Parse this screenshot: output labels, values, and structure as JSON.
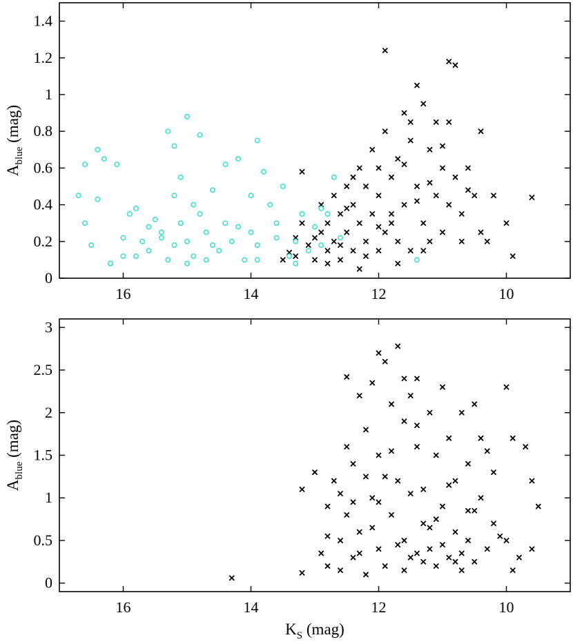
{
  "chart_data": [
    {
      "type": "scatter",
      "title": "",
      "xlabel": {
        "main": "K",
        "sub": "S",
        "unit": " (mag)",
        "shown": false
      },
      "ylabel": {
        "main": "A",
        "sub": "blue",
        "unit": " (mag)"
      },
      "xlim": [
        17.0,
        9.0
      ],
      "ylim": [
        0.0,
        1.5
      ],
      "x_reversed": true,
      "xticks": [
        16,
        14,
        12,
        10
      ],
      "yticks": [
        0,
        0.2,
        0.4,
        0.6,
        0.8,
        1,
        1.2,
        1.4
      ],
      "xtick_labels": [
        "16",
        "14",
        "12",
        "10"
      ],
      "ytick_labels": [
        "0",
        "0.2",
        "0.4",
        "0.6",
        "0.8",
        "1",
        "1.2",
        "1.4"
      ],
      "grid": false,
      "legend": null,
      "series": [
        {
          "marker": "x",
          "color": "#000000",
          "points": [
            [
              13.5,
              0.1
            ],
            [
              13.4,
              0.14
            ],
            [
              13.3,
              0.12
            ],
            [
              13.2,
              0.3
            ],
            [
              13.1,
              0.18
            ],
            [
              13.0,
              0.22
            ],
            [
              13.0,
              0.1
            ],
            [
              12.9,
              0.25
            ],
            [
              12.8,
              0.15
            ],
            [
              12.8,
              0.3
            ],
            [
              12.7,
              0.2
            ],
            [
              12.7,
              0.45
            ],
            [
              12.6,
              0.1
            ],
            [
              12.6,
              0.35
            ],
            [
              12.5,
              0.25
            ],
            [
              12.5,
              0.5
            ],
            [
              12.4,
              0.15
            ],
            [
              12.4,
              0.4
            ],
            [
              12.3,
              0.3
            ],
            [
              12.3,
              0.6
            ],
            [
              12.2,
              0.2
            ],
            [
              12.2,
              0.5
            ],
            [
              12.1,
              0.35
            ],
            [
              12.1,
              0.7
            ],
            [
              12.0,
              0.15
            ],
            [
              12.0,
              0.45
            ],
            [
              11.9,
              0.25
            ],
            [
              11.9,
              0.8
            ],
            [
              11.8,
              0.55
            ],
            [
              11.8,
              0.3
            ],
            [
              11.7,
              0.65
            ],
            [
              11.7,
              0.2
            ],
            [
              11.6,
              0.9
            ],
            [
              11.6,
              0.4
            ],
            [
              11.5,
              0.75
            ],
            [
              11.5,
              0.15
            ],
            [
              11.4,
              1.05
            ],
            [
              11.4,
              0.5
            ],
            [
              11.3,
              0.95
            ],
            [
              11.3,
              0.3
            ],
            [
              11.2,
              0.7
            ],
            [
              11.2,
              0.2
            ],
            [
              11.1,
              0.85
            ],
            [
              11.1,
              0.45
            ],
            [
              11.0,
              0.6
            ],
            [
              11.0,
              0.25
            ],
            [
              10.9,
              1.18
            ],
            [
              10.9,
              0.4
            ],
            [
              10.8,
              1.16
            ],
            [
              10.8,
              0.55
            ],
            [
              10.7,
              0.35
            ],
            [
              10.6,
              0.6
            ],
            [
              10.5,
              0.45
            ],
            [
              10.4,
              0.8
            ],
            [
              10.4,
              0.25
            ],
            [
              10.3,
              0.2
            ],
            [
              10.2,
              0.45
            ],
            [
              10.0,
              0.3
            ],
            [
              9.9,
              0.12
            ],
            [
              9.6,
              0.44
            ],
            [
              11.9,
              1.24
            ],
            [
              11.5,
              0.85
            ],
            [
              12.0,
              0.6
            ],
            [
              12.5,
              0.38
            ],
            [
              12.9,
              0.4
            ],
            [
              13.2,
              0.58
            ],
            [
              13.3,
              0.22
            ],
            [
              12.2,
              0.12
            ],
            [
              11.6,
              0.62
            ],
            [
              10.9,
              0.85
            ],
            [
              12.4,
              0.55
            ],
            [
              11.8,
              0.35
            ],
            [
              11.3,
              0.15
            ],
            [
              10.7,
              0.2
            ],
            [
              12.6,
              0.18
            ],
            [
              12.0,
              0.28
            ],
            [
              11.4,
              0.42
            ],
            [
              11.0,
              0.72
            ],
            [
              10.6,
              0.48
            ],
            [
              12.3,
              0.05
            ],
            [
              11.7,
              0.08
            ],
            [
              11.2,
              0.52
            ],
            [
              12.8,
              0.08
            ]
          ]
        },
        {
          "marker": "o",
          "color": "#40e0d0",
          "points": [
            [
              16.7,
              0.45
            ],
            [
              16.6,
              0.62
            ],
            [
              16.6,
              0.3
            ],
            [
              16.5,
              0.18
            ],
            [
              16.4,
              0.7
            ],
            [
              16.4,
              0.43
            ],
            [
              16.3,
              0.65
            ],
            [
              16.2,
              0.08
            ],
            [
              16.1,
              0.62
            ],
            [
              16.0,
              0.12
            ],
            [
              15.9,
              0.35
            ],
            [
              15.8,
              0.38
            ],
            [
              15.7,
              0.2
            ],
            [
              15.6,
              0.15
            ],
            [
              15.5,
              0.32
            ],
            [
              15.4,
              0.25
            ],
            [
              15.3,
              0.1
            ],
            [
              15.3,
              0.8
            ],
            [
              15.2,
              0.45
            ],
            [
              15.2,
              0.72
            ],
            [
              15.1,
              0.55
            ],
            [
              15.1,
              0.3
            ],
            [
              15.0,
              0.88
            ],
            [
              15.0,
              0.2
            ],
            [
              14.9,
              0.4
            ],
            [
              14.9,
              0.12
            ],
            [
              14.8,
              0.78
            ],
            [
              14.8,
              0.35
            ],
            [
              14.7,
              0.25
            ],
            [
              14.6,
              0.48
            ],
            [
              14.5,
              0.15
            ],
            [
              14.4,
              0.62
            ],
            [
              14.4,
              0.3
            ],
            [
              14.3,
              0.2
            ],
            [
              14.2,
              0.65
            ],
            [
              14.1,
              0.1
            ],
            [
              14.0,
              0.45
            ],
            [
              14.0,
              0.25
            ],
            [
              13.9,
              0.75
            ],
            [
              13.9,
              0.18
            ],
            [
              13.8,
              0.58
            ],
            [
              13.7,
              0.4
            ],
            [
              13.6,
              0.3
            ],
            [
              13.5,
              0.5
            ],
            [
              13.4,
              0.12
            ],
            [
              13.3,
              0.2
            ],
            [
              13.2,
              0.35
            ],
            [
              13.1,
              0.15
            ],
            [
              13.0,
              0.28
            ],
            [
              12.9,
              0.18
            ],
            [
              12.8,
              0.35
            ],
            [
              12.7,
              0.55
            ],
            [
              12.6,
              0.22
            ],
            [
              16.2,
              0.08
            ],
            [
              15.8,
              0.12
            ],
            [
              15.4,
              0.22
            ],
            [
              15.6,
              0.28
            ],
            [
              14.6,
              0.18
            ],
            [
              14.2,
              0.28
            ],
            [
              13.9,
              0.1
            ],
            [
              13.6,
              0.22
            ],
            [
              12.9,
              0.38
            ],
            [
              11.4,
              0.1
            ],
            [
              15.0,
              0.08
            ],
            [
              14.7,
              0.1
            ],
            [
              13.3,
              0.08
            ],
            [
              16.0,
              0.22
            ],
            [
              15.2,
              0.18
            ]
          ]
        }
      ]
    },
    {
      "type": "scatter",
      "title": "",
      "xlabel": {
        "main": "K",
        "sub": "S",
        "unit": " (mag)",
        "shown": true
      },
      "ylabel": {
        "main": "A",
        "sub": "blue",
        "unit": " (mag)"
      },
      "xlim": [
        17.0,
        9.0
      ],
      "ylim": [
        -0.1,
        3.1
      ],
      "x_reversed": true,
      "xticks": [
        16,
        14,
        12,
        10
      ],
      "yticks": [
        0,
        0.5,
        1,
        1.5,
        2,
        2.5,
        3
      ],
      "xtick_labels": [
        "16",
        "14",
        "12",
        "10"
      ],
      "ytick_labels": [
        "0",
        "0.5",
        "1",
        "1.5",
        "2",
        "2.5",
        "3"
      ],
      "grid": false,
      "legend": null,
      "series": [
        {
          "marker": "x",
          "color": "#000000",
          "points": [
            [
              14.3,
              0.06
            ],
            [
              13.2,
              1.1
            ],
            [
              13.2,
              0.12
            ],
            [
              13.0,
              1.3
            ],
            [
              12.9,
              0.35
            ],
            [
              12.8,
              0.9
            ],
            [
              12.8,
              0.2
            ],
            [
              12.7,
              1.2
            ],
            [
              12.6,
              0.5
            ],
            [
              12.6,
              0.15
            ],
            [
              12.5,
              1.6
            ],
            [
              12.5,
              2.42
            ],
            [
              12.5,
              0.8
            ],
            [
              12.4,
              0.3
            ],
            [
              12.4,
              1.4
            ],
            [
              12.3,
              2.2
            ],
            [
              12.3,
              0.6
            ],
            [
              12.2,
              1.8
            ],
            [
              12.2,
              0.1
            ],
            [
              12.1,
              2.35
            ],
            [
              12.1,
              1.0
            ],
            [
              12.0,
              2.7
            ],
            [
              12.0,
              0.4
            ],
            [
              12.0,
              1.5
            ],
            [
              11.9,
              2.6
            ],
            [
              11.9,
              0.2
            ],
            [
              11.8,
              2.1
            ],
            [
              11.8,
              0.8
            ],
            [
              11.7,
              2.78
            ],
            [
              11.7,
              1.2
            ],
            [
              11.6,
              0.5
            ],
            [
              11.6,
              1.9
            ],
            [
              11.5,
              2.2
            ],
            [
              11.5,
              0.3
            ],
            [
              11.4,
              1.6
            ],
            [
              11.4,
              2.4
            ],
            [
              11.3,
              0.7
            ],
            [
              11.3,
              1.1
            ],
            [
              11.2,
              2.0
            ],
            [
              11.2,
              0.4
            ],
            [
              11.1,
              1.5
            ],
            [
              11.1,
              0.2
            ],
            [
              11.0,
              2.3
            ],
            [
              11.0,
              0.9
            ],
            [
              10.9,
              1.7
            ],
            [
              10.9,
              0.3
            ],
            [
              10.8,
              1.2
            ],
            [
              10.8,
              0.6
            ],
            [
              10.7,
              2.0
            ],
            [
              10.7,
              0.15
            ],
            [
              10.6,
              1.4
            ],
            [
              10.6,
              0.5
            ],
            [
              10.5,
              2.1
            ],
            [
              10.5,
              0.25
            ],
            [
              10.4,
              1.0
            ],
            [
              10.3,
              0.4
            ],
            [
              10.2,
              1.3
            ],
            [
              10.2,
              0.7
            ],
            [
              10.0,
              2.3
            ],
            [
              10.0,
              0.5
            ],
            [
              9.9,
              1.7
            ],
            [
              9.8,
              0.3
            ],
            [
              9.7,
              1.6
            ],
            [
              9.6,
              1.2
            ],
            [
              9.5,
              0.9
            ],
            [
              9.6,
              0.4
            ],
            [
              12.3,
              0.35
            ],
            [
              12.1,
              0.65
            ],
            [
              11.9,
              1.25
            ],
            [
              11.7,
              0.45
            ],
            [
              11.5,
              1.05
            ],
            [
              11.3,
              0.25
            ],
            [
              11.1,
              0.75
            ],
            [
              10.9,
              1.15
            ],
            [
              10.7,
              0.35
            ],
            [
              10.5,
              0.85
            ],
            [
              10.3,
              1.55
            ],
            [
              12.6,
              1.05
            ],
            [
              12.4,
              0.95
            ],
            [
              12.0,
              0.95
            ],
            [
              11.8,
              1.55
            ],
            [
              11.6,
              0.15
            ],
            [
              11.4,
              0.35
            ],
            [
              11.2,
              0.65
            ],
            [
              11.0,
              0.45
            ],
            [
              10.8,
              0.25
            ],
            [
              10.6,
              0.85
            ],
            [
              10.4,
              1.7
            ],
            [
              10.1,
              0.55
            ],
            [
              9.9,
              0.15
            ],
            [
              12.8,
              0.55
            ],
            [
              12.2,
              1.25
            ],
            [
              11.6,
              2.4
            ],
            [
              11.4,
              1.85
            ]
          ]
        }
      ]
    }
  ]
}
